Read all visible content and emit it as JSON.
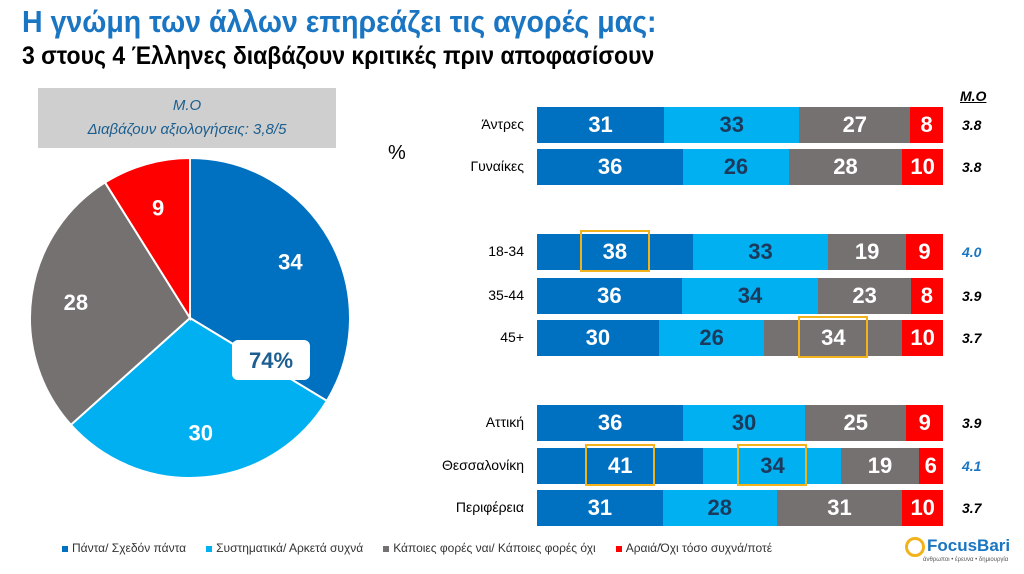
{
  "title": "Η γνώμη των άλλων επηρεάζει τις αγορές μας:",
  "subtitle": "3 στους 4 Έλληνες διαβάζουν κριτικές πριν αποφασίσουν",
  "mo_box": {
    "line1": "Μ.Ο",
    "line2": "Διαβάζουν αξιολογήσεις: 3,8/5"
  },
  "percent_sign": "%",
  "mo_header": "Μ.Ο",
  "colors": [
    "#0070c0",
    "#00b0f0",
    "#767171",
    "#ff0000"
  ],
  "highlight_color": "#f2b21b",
  "chart_data": [
    {
      "type": "pie",
      "values": [
        34,
        30,
        28,
        9
      ],
      "labels": [
        "34",
        "30",
        "28",
        "9"
      ],
      "callout": "74%",
      "start": "top",
      "direction": "clockwise"
    },
    {
      "type": "bar",
      "orientation": "horizontal",
      "stacked": true,
      "series": [
        {
          "name": "Πάντα/ Σχεδόν πάντα"
        },
        {
          "name": "Συστηματικά/ Αρκετά συχνά"
        },
        {
          "name": "Κάποιες φορές ναι/ Κάποιες φορές όχι"
        },
        {
          "name": "Αραιά/Όχι τόσο συχνά/ποτέ"
        }
      ],
      "rows": [
        {
          "label": "Άντρες",
          "values": [
            31,
            33,
            27,
            8
          ],
          "mo": "3.8",
          "mo_highlight": false,
          "highlights": []
        },
        {
          "label": "Γυναίκες",
          "values": [
            36,
            26,
            28,
            10
          ],
          "mo": "3.8",
          "mo_highlight": false,
          "highlights": []
        },
        {
          "label": "18-34",
          "values": [
            38,
            33,
            19,
            9
          ],
          "mo": "4.0",
          "mo_highlight": true,
          "highlights": [
            0
          ]
        },
        {
          "label": "35-44",
          "values": [
            36,
            34,
            23,
            8
          ],
          "mo": "3.9",
          "mo_highlight": false,
          "highlights": []
        },
        {
          "label": "45+",
          "values": [
            30,
            26,
            34,
            10
          ],
          "mo": "3.7",
          "mo_highlight": false,
          "highlights": [
            2
          ]
        },
        {
          "label": "Αττική",
          "values": [
            36,
            30,
            25,
            9
          ],
          "mo": "3.9",
          "mo_highlight": false,
          "highlights": []
        },
        {
          "label": "Θεσσαλονίκη",
          "values": [
            41,
            34,
            19,
            6
          ],
          "mo": "4.1",
          "mo_highlight": true,
          "highlights": [
            0,
            1
          ]
        },
        {
          "label": "Περιφέρεια",
          "values": [
            31,
            28,
            31,
            10
          ],
          "mo": "3.7",
          "mo_highlight": false,
          "highlights": []
        }
      ]
    }
  ],
  "legend": [
    "Πάντα/ Σχεδόν πάντα",
    "Συστηματικά/ Αρκετά συχνά",
    "Κάποιες φορές ναι/ Κάποιες φορές όχι",
    "Αραιά/Όχι τόσο συχνά/ποτέ"
  ],
  "logo": {
    "name": "FocusBari",
    "tagline": "άνθρωποι • έρευνα • δημιουργία"
  }
}
